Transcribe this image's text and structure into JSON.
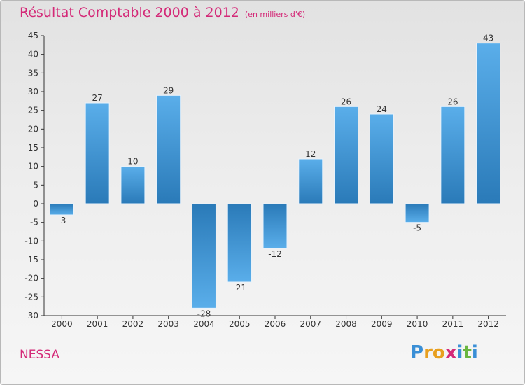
{
  "chart_data": {
    "type": "bar",
    "title": "Résultat Comptable 2000 à 2012",
    "subtitle": "(en milliers d'€)",
    "categories": [
      "2000",
      "2001",
      "2002",
      "2003",
      "2004",
      "2005",
      "2006",
      "2007",
      "2008",
      "2009",
      "2010",
      "2011",
      "2012"
    ],
    "values": [
      -3,
      27,
      10,
      29,
      -28,
      -21,
      -12,
      12,
      26,
      24,
      -5,
      26,
      43
    ],
    "value_labels": [
      "-3",
      "27",
      "10",
      "29",
      "-28",
      "-21",
      "-12",
      "12",
      "26",
      "24",
      "-5",
      "26",
      "43"
    ],
    "ylim": [
      -30,
      45
    ],
    "yticks": [
      45,
      40,
      35,
      30,
      25,
      20,
      15,
      10,
      5,
      0,
      -5,
      -10,
      -15,
      -20,
      -25,
      -30
    ],
    "grid": false,
    "xlabel": "",
    "ylabel": "",
    "bar_color_light": "#5aaeea",
    "bar_color_dark": "#2a7ab8"
  },
  "footer": {
    "commune": "NESSA",
    "logo_letters": [
      "P",
      "r",
      "o",
      "x",
      "i",
      "t",
      "i"
    ],
    "logo_colors": [
      "#3a8fd6",
      "#e8a020",
      "#e8a020",
      "#d42a78",
      "#3a8fd6",
      "#6ab640",
      "#3a8fd6"
    ]
  },
  "colors": {
    "accent": "#d42a78",
    "axis": "#333333"
  }
}
